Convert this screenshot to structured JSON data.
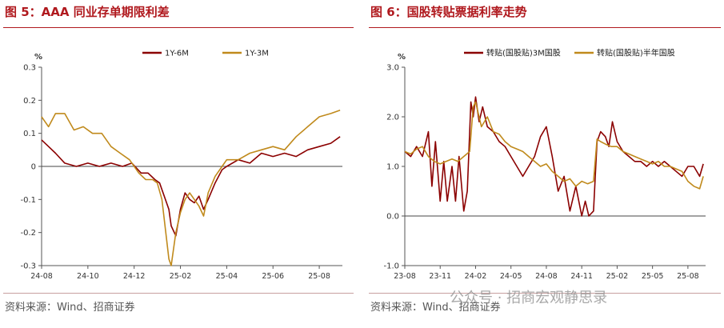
{
  "colors": {
    "title": "#b0191e",
    "series_a": "#8b0000",
    "series_b": "#c08a1c",
    "axis": "#555555"
  },
  "left_panel": {
    "title": "图 5：AAA 同业存单期限利差",
    "source": "资料来源：Wind、招商证券"
  },
  "right_panel": {
    "title": "图 6：国股转贴票据利率走势",
    "source": "资料来源：Wind、招商证券"
  },
  "watermark": "公众号 · 招商宏观静思录",
  "chart_data": [
    {
      "type": "line",
      "title": "",
      "ylabel": "%",
      "ylim": [
        -0.3,
        0.3
      ],
      "yticks": [
        -0.3,
        -0.2,
        -0.1,
        0,
        0.1,
        0.2,
        0.3
      ],
      "ytick_labels": [
        "-0.3",
        "-0.2",
        "-0.1",
        "0",
        "0.1",
        "0.2",
        "0.3"
      ],
      "x_range": [
        0,
        13
      ],
      "xticks": [
        0,
        2,
        4,
        6,
        8,
        10,
        12
      ],
      "xtick_labels": [
        "24-08",
        "24-10",
        "24-12",
        "25-02",
        "25-04",
        "25-06",
        "25-08"
      ],
      "zero_line": true,
      "legend_position": "top",
      "series": [
        {
          "name": "1Y-6M",
          "color": "#8b0000",
          "x": [
            0,
            0.3,
            0.6,
            1.0,
            1.5,
            2.0,
            2.5,
            3.0,
            3.5,
            3.9,
            4.3,
            4.6,
            4.9,
            5.1,
            5.3,
            5.5,
            5.6,
            5.8,
            6.0,
            6.2,
            6.4,
            6.6,
            6.8,
            7.0,
            7.2,
            7.5,
            7.8,
            8.0,
            8.5,
            9.0,
            9.5,
            10.0,
            10.5,
            11.0,
            11.5,
            12.0,
            12.5,
            12.9
          ],
          "y": [
            0.08,
            0.06,
            0.04,
            0.01,
            0.0,
            0.01,
            0.0,
            0.01,
            0.0,
            0.01,
            -0.02,
            -0.02,
            -0.04,
            -0.05,
            -0.09,
            -0.13,
            -0.18,
            -0.21,
            -0.13,
            -0.08,
            -0.1,
            -0.11,
            -0.09,
            -0.13,
            -0.1,
            -0.05,
            -0.01,
            0.0,
            0.02,
            0.01,
            0.04,
            0.03,
            0.04,
            0.03,
            0.05,
            0.06,
            0.07,
            0.09
          ]
        },
        {
          "name": "1Y-3M",
          "color": "#c08a1c",
          "x": [
            0,
            0.3,
            0.6,
            1.0,
            1.4,
            1.8,
            2.2,
            2.6,
            3.0,
            3.4,
            3.8,
            4.2,
            4.5,
            4.8,
            5.0,
            5.2,
            5.4,
            5.5,
            5.6,
            5.8,
            6.0,
            6.2,
            6.4,
            6.6,
            6.8,
            7.0,
            7.2,
            7.5,
            7.8,
            8.0,
            8.5,
            9.0,
            9.5,
            10.0,
            10.5,
            11.0,
            11.5,
            12.0,
            12.5,
            12.9
          ],
          "y": [
            0.15,
            0.12,
            0.16,
            0.16,
            0.11,
            0.12,
            0.1,
            0.1,
            0.06,
            0.04,
            0.02,
            -0.02,
            -0.04,
            -0.04,
            -0.05,
            -0.1,
            -0.22,
            -0.28,
            -0.3,
            -0.2,
            -0.14,
            -0.1,
            -0.08,
            -0.1,
            -0.12,
            -0.15,
            -0.08,
            -0.03,
            0.0,
            0.02,
            0.02,
            0.04,
            0.05,
            0.06,
            0.05,
            0.09,
            0.12,
            0.15,
            0.16,
            0.17
          ]
        }
      ]
    },
    {
      "type": "line",
      "title": "",
      "ylabel": "%",
      "ylim": [
        -1.0,
        3.0
      ],
      "yticks": [
        -1.0,
        0.0,
        1.0,
        2.0,
        3.0
      ],
      "ytick_labels": [
        "-1.0",
        "0.0",
        "1.0",
        "2.0",
        "3.0"
      ],
      "x_range": [
        0,
        25.5
      ],
      "xticks": [
        0,
        3,
        6,
        9,
        12,
        15,
        18,
        21,
        24
      ],
      "xtick_labels": [
        "23-08",
        "23-11",
        "24-02",
        "24-05",
        "24-08",
        "24-11",
        "25-02",
        "25-05",
        "25-08"
      ],
      "zero_line": true,
      "legend_position": "top",
      "series": [
        {
          "name": "转贴(国股贴)3M国股",
          "color": "#8b0000",
          "x": [
            0,
            0.5,
            1.0,
            1.5,
            2.0,
            2.3,
            2.6,
            3.0,
            3.3,
            3.6,
            4.0,
            4.3,
            4.6,
            5.0,
            5.3,
            5.6,
            5.8,
            6.0,
            6.3,
            6.6,
            7.0,
            7.5,
            8.0,
            8.5,
            9.0,
            9.5,
            10.0,
            10.5,
            11.0,
            11.5,
            12.0,
            12.5,
            13.0,
            13.5,
            14.0,
            14.5,
            15.0,
            15.3,
            15.6,
            16.0,
            16.3,
            16.6,
            17.0,
            17.3,
            17.6,
            18.0,
            18.5,
            19.0,
            19.5,
            20.0,
            20.5,
            21.0,
            21.5,
            22.0,
            22.5,
            23.0,
            23.5,
            24.0,
            24.5,
            25.0,
            25.3
          ],
          "y": [
            1.3,
            1.2,
            1.4,
            1.2,
            1.7,
            0.6,
            1.5,
            0.3,
            1.1,
            0.3,
            1.0,
            0.3,
            1.2,
            0.1,
            0.5,
            2.3,
            2.0,
            2.4,
            1.9,
            2.2,
            1.8,
            1.7,
            1.5,
            1.4,
            1.2,
            1.0,
            0.8,
            1.0,
            1.2,
            1.6,
            1.8,
            1.2,
            0.5,
            0.8,
            0.1,
            0.6,
            0.0,
            0.3,
            0.0,
            0.1,
            1.5,
            1.7,
            1.6,
            1.4,
            1.9,
            1.5,
            1.3,
            1.2,
            1.1,
            1.1,
            1.0,
            1.1,
            1.0,
            1.1,
            1.0,
            0.9,
            0.8,
            1.0,
            1.0,
            0.8,
            1.05
          ]
        },
        {
          "name": "转贴(国股贴)半年国股",
          "color": "#c08a1c",
          "x": [
            0,
            0.5,
            1.0,
            1.5,
            2.0,
            2.5,
            3.0,
            3.5,
            4.0,
            4.5,
            5.0,
            5.5,
            5.8,
            6.0,
            6.5,
            7.0,
            7.5,
            8.0,
            8.5,
            9.0,
            9.5,
            10.0,
            10.5,
            11.0,
            11.5,
            12.0,
            12.5,
            13.0,
            13.5,
            14.0,
            14.5,
            15.0,
            15.5,
            16.0,
            16.3,
            16.6,
            17.0,
            17.5,
            18.0,
            18.5,
            19.0,
            19.5,
            20.0,
            20.5,
            21.0,
            21.5,
            22.0,
            22.5,
            23.0,
            23.5,
            24.0,
            24.5,
            25.0,
            25.3
          ],
          "y": [
            1.3,
            1.25,
            1.35,
            1.4,
            1.2,
            1.1,
            1.05,
            1.1,
            1.15,
            1.1,
            1.2,
            1.3,
            2.2,
            2.3,
            1.8,
            2.0,
            1.7,
            1.65,
            1.5,
            1.4,
            1.35,
            1.3,
            1.2,
            1.1,
            1.0,
            1.05,
            0.9,
            0.8,
            0.7,
            0.75,
            0.6,
            0.7,
            0.65,
            0.7,
            1.55,
            1.5,
            1.45,
            1.4,
            1.4,
            1.3,
            1.25,
            1.2,
            1.15,
            1.1,
            1.05,
            1.1,
            1.0,
            1.0,
            0.95,
            0.9,
            0.7,
            0.6,
            0.55,
            0.8
          ]
        }
      ]
    }
  ]
}
